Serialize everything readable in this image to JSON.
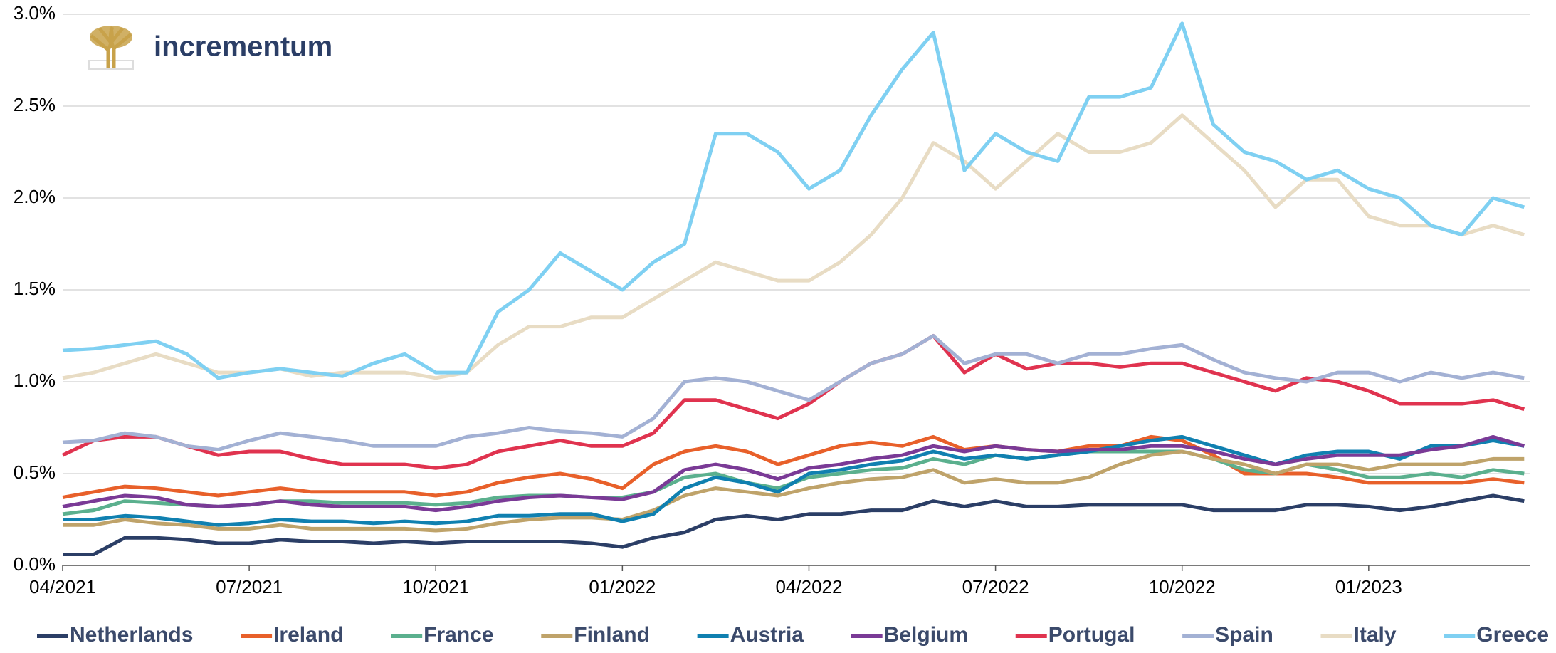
{
  "logo_text": "incrementum",
  "chart_data": {
    "type": "line",
    "x": [
      0,
      0.5,
      1,
      1.5,
      2,
      2.5,
      3,
      3.5,
      4,
      4.5,
      5,
      5.5,
      6,
      6.5,
      7,
      7.5,
      8,
      8.5,
      9,
      9.5,
      10,
      10.5,
      11,
      11.5,
      12,
      12.5,
      13,
      13.5,
      14,
      14.5,
      15,
      15.5,
      16,
      16.5,
      17,
      17.5,
      18,
      18.5,
      19,
      19.5,
      20,
      20.5,
      21,
      21.5,
      22,
      22.5,
      23,
      23.5
    ],
    "xlim": [
      0,
      23.6
    ],
    "xticks": [
      {
        "value": 0,
        "label": "04/2021"
      },
      {
        "value": 3,
        "label": "07/2021"
      },
      {
        "value": 6,
        "label": "10/2021"
      },
      {
        "value": 9,
        "label": "01/2022"
      },
      {
        "value": 12,
        "label": "04/2022"
      },
      {
        "value": 15,
        "label": "07/2022"
      },
      {
        "value": 18,
        "label": "10/2022"
      },
      {
        "value": 21,
        "label": "01/2023"
      }
    ],
    "ylim": [
      0,
      3
    ],
    "yticks": [
      {
        "value": 0,
        "label": "0.0%"
      },
      {
        "value": 0.5,
        "label": "0.5%"
      },
      {
        "value": 1,
        "label": "1.0%"
      },
      {
        "value": 1.5,
        "label": "1.5%"
      },
      {
        "value": 2,
        "label": "2.0%"
      },
      {
        "value": 2.5,
        "label": "2.5%"
      },
      {
        "value": 3,
        "label": "3.0%"
      }
    ],
    "grid": true,
    "series": [
      {
        "name": "Netherlands",
        "color": "#2b3e66",
        "values": [
          0.06,
          0.06,
          0.15,
          0.15,
          0.14,
          0.12,
          0.12,
          0.14,
          0.13,
          0.13,
          0.12,
          0.13,
          0.12,
          0.13,
          0.13,
          0.13,
          0.13,
          0.12,
          0.1,
          0.15,
          0.18,
          0.25,
          0.27,
          0.25,
          0.28,
          0.28,
          0.3,
          0.3,
          0.35,
          0.32,
          0.35,
          0.32,
          0.32,
          0.33,
          0.33,
          0.33,
          0.33,
          0.3,
          0.3,
          0.3,
          0.33,
          0.33,
          0.32,
          0.3,
          0.32,
          0.35,
          0.38,
          0.35
        ]
      },
      {
        "name": "Ireland",
        "color": "#e8602a",
        "values": [
          0.37,
          0.4,
          0.43,
          0.42,
          0.4,
          0.38,
          0.4,
          0.42,
          0.4,
          0.4,
          0.4,
          0.4,
          0.38,
          0.4,
          0.45,
          0.48,
          0.5,
          0.47,
          0.42,
          0.55,
          0.62,
          0.65,
          0.62,
          0.55,
          0.6,
          0.65,
          0.67,
          0.65,
          0.7,
          0.63,
          0.65,
          0.63,
          0.62,
          0.65,
          0.65,
          0.7,
          0.68,
          0.6,
          0.5,
          0.5,
          0.5,
          0.48,
          0.45,
          0.45,
          0.45,
          0.45,
          0.47,
          0.45
        ]
      },
      {
        "name": "France",
        "color": "#5bb08e",
        "values": [
          0.28,
          0.3,
          0.35,
          0.34,
          0.33,
          0.32,
          0.33,
          0.35,
          0.35,
          0.34,
          0.34,
          0.34,
          0.33,
          0.34,
          0.37,
          0.38,
          0.38,
          0.37,
          0.37,
          0.4,
          0.48,
          0.5,
          0.45,
          0.42,
          0.48,
          0.5,
          0.52,
          0.53,
          0.58,
          0.55,
          0.6,
          0.58,
          0.6,
          0.62,
          0.62,
          0.62,
          0.62,
          0.58,
          0.52,
          0.5,
          0.55,
          0.52,
          0.48,
          0.48,
          0.5,
          0.48,
          0.52,
          0.5
        ]
      },
      {
        "name": "Finland",
        "color": "#bfa36a",
        "values": [
          0.22,
          0.22,
          0.25,
          0.23,
          0.22,
          0.2,
          0.2,
          0.22,
          0.2,
          0.2,
          0.2,
          0.2,
          0.19,
          0.2,
          0.23,
          0.25,
          0.26,
          0.26,
          0.25,
          0.3,
          0.38,
          0.42,
          0.4,
          0.38,
          0.42,
          0.45,
          0.47,
          0.48,
          0.52,
          0.45,
          0.47,
          0.45,
          0.45,
          0.48,
          0.55,
          0.6,
          0.62,
          0.58,
          0.55,
          0.5,
          0.55,
          0.55,
          0.52,
          0.55,
          0.55,
          0.55,
          0.58,
          0.58
        ]
      },
      {
        "name": "Austria",
        "color": "#1080b0",
        "values": [
          0.25,
          0.25,
          0.27,
          0.26,
          0.24,
          0.22,
          0.23,
          0.25,
          0.24,
          0.24,
          0.23,
          0.24,
          0.23,
          0.24,
          0.27,
          0.27,
          0.28,
          0.28,
          0.24,
          0.28,
          0.42,
          0.48,
          0.45,
          0.4,
          0.5,
          0.52,
          0.55,
          0.57,
          0.62,
          0.58,
          0.6,
          0.58,
          0.6,
          0.62,
          0.65,
          0.68,
          0.7,
          0.65,
          0.6,
          0.55,
          0.6,
          0.62,
          0.62,
          0.58,
          0.65,
          0.65,
          0.68,
          0.65
        ]
      },
      {
        "name": "Belgium",
        "color": "#7a3a96",
        "values": [
          0.32,
          0.35,
          0.38,
          0.37,
          0.33,
          0.32,
          0.33,
          0.35,
          0.33,
          0.32,
          0.32,
          0.32,
          0.3,
          0.32,
          0.35,
          0.37,
          0.38,
          0.37,
          0.36,
          0.4,
          0.52,
          0.55,
          0.52,
          0.47,
          0.53,
          0.55,
          0.58,
          0.6,
          0.65,
          0.62,
          0.65,
          0.63,
          0.62,
          0.63,
          0.63,
          0.65,
          0.65,
          0.62,
          0.58,
          0.55,
          0.58,
          0.6,
          0.6,
          0.6,
          0.63,
          0.65,
          0.7,
          0.65
        ]
      },
      {
        "name": "Portugal",
        "color": "#e0334f",
        "values": [
          0.6,
          0.68,
          0.7,
          0.7,
          0.65,
          0.6,
          0.62,
          0.62,
          0.58,
          0.55,
          0.55,
          0.55,
          0.53,
          0.55,
          0.62,
          0.65,
          0.68,
          0.65,
          0.65,
          0.72,
          0.9,
          0.9,
          0.85,
          0.8,
          0.88,
          1.0,
          1.1,
          1.15,
          1.25,
          1.05,
          1.15,
          1.07,
          1.1,
          1.1,
          1.08,
          1.1,
          1.1,
          1.05,
          1.0,
          0.95,
          1.02,
          1.0,
          0.95,
          0.88,
          0.88,
          0.88,
          0.9,
          0.85
        ]
      },
      {
        "name": "Spain",
        "color": "#a3b1d4",
        "values": [
          0.67,
          0.68,
          0.72,
          0.7,
          0.65,
          0.63,
          0.68,
          0.72,
          0.7,
          0.68,
          0.65,
          0.65,
          0.65,
          0.7,
          0.72,
          0.75,
          0.73,
          0.72,
          0.7,
          0.8,
          1.0,
          1.02,
          1.0,
          0.95,
          0.9,
          1.0,
          1.1,
          1.15,
          1.25,
          1.1,
          1.15,
          1.15,
          1.1,
          1.15,
          1.15,
          1.18,
          1.2,
          1.12,
          1.05,
          1.02,
          1.0,
          1.05,
          1.05,
          1.0,
          1.05,
          1.02,
          1.05,
          1.02
        ]
      },
      {
        "name": "Italy",
        "color": "#e8dcc4",
        "values": [
          1.02,
          1.05,
          1.1,
          1.15,
          1.1,
          1.05,
          1.05,
          1.07,
          1.03,
          1.05,
          1.05,
          1.05,
          1.02,
          1.05,
          1.2,
          1.3,
          1.3,
          1.35,
          1.35,
          1.45,
          1.55,
          1.65,
          1.6,
          1.55,
          1.55,
          1.65,
          1.8,
          2.0,
          2.3,
          2.2,
          2.05,
          2.2,
          2.35,
          2.25,
          2.25,
          2.3,
          2.45,
          2.3,
          2.15,
          1.95,
          2.1,
          2.1,
          1.9,
          1.85,
          1.85,
          1.8,
          1.85,
          1.8
        ]
      },
      {
        "name": "Greece",
        "color": "#7fd0f2",
        "values": [
          1.17,
          1.18,
          1.2,
          1.22,
          1.15,
          1.02,
          1.05,
          1.07,
          1.05,
          1.03,
          1.1,
          1.15,
          1.05,
          1.05,
          1.38,
          1.5,
          1.7,
          1.6,
          1.5,
          1.65,
          1.75,
          2.35,
          2.35,
          2.25,
          2.05,
          2.15,
          2.45,
          2.7,
          2.9,
          2.15,
          2.35,
          2.25,
          2.2,
          2.55,
          2.55,
          2.6,
          2.95,
          2.4,
          2.25,
          2.2,
          2.1,
          2.15,
          2.05,
          2.0,
          1.85,
          1.8,
          2.0,
          1.95
        ]
      }
    ]
  }
}
